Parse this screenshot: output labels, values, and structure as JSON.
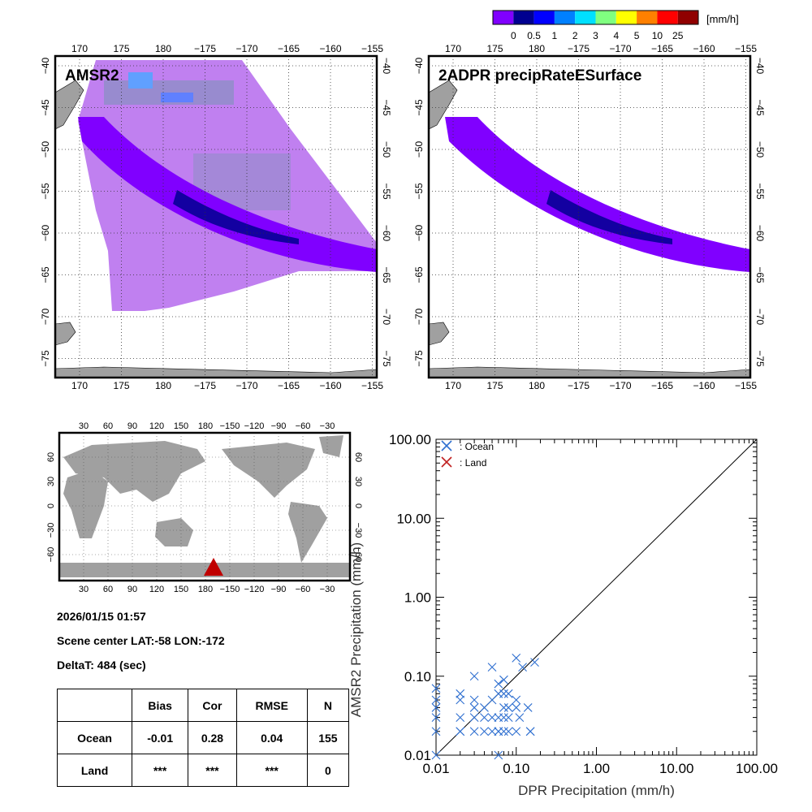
{
  "colorbar": {
    "unit": "[mm/h]",
    "labels": [
      "0",
      "0.5",
      "1",
      "2",
      "3",
      "4",
      "5",
      "10",
      "25"
    ],
    "colors": [
      "#8000ff",
      "#000090",
      "#0000ff",
      "#0080ff",
      "#00e0ff",
      "#80ff80",
      "#ffff00",
      "#ff8000",
      "#ff0000",
      "#900000"
    ]
  },
  "maps": {
    "lon_ticks": [
      "170",
      "175",
      "180",
      "−175",
      "−170",
      "−165",
      "−160",
      "−155"
    ],
    "lat_ticks": [
      "−40",
      "−45",
      "−50",
      "−55",
      "−60",
      "−65",
      "−70",
      "−75"
    ],
    "left_title": "AMSR2",
    "right_title": "2ADPR precipRateESurface",
    "swath_colors": {
      "amsr2_coverage": "#c080f0",
      "light": "#8000ff",
      "moderate": "#000090",
      "gray_patch": "#8890c0"
    }
  },
  "world_map": {
    "top_ticks": [
      "30",
      "60",
      "90",
      "120",
      "150",
      "180",
      "−150",
      "−120",
      "−90",
      "−60",
      "−30"
    ],
    "bottom_ticks": [
      "30",
      "60",
      "90",
      "120",
      "150",
      "180",
      "−150",
      "−120",
      "−90",
      "−60",
      "−30"
    ],
    "lat_ticks": [
      "60",
      "30",
      "0",
      "−30",
      "−60"
    ],
    "marker_color": "#c00000",
    "land_color": "#a0a0a0"
  },
  "info": {
    "datetime": "2026/01/15 01:57",
    "scene_center": "Scene center LAT:-58   LON:-172",
    "delta_t": "DeltaT:  484 (sec)"
  },
  "stats_table": {
    "headers": [
      "",
      "Bias",
      "Cor",
      "RMSE",
      "N"
    ],
    "rows": [
      {
        "label": "Ocean",
        "values": [
          "-0.01",
          "0.28",
          "0.04",
          "155"
        ]
      },
      {
        "label": "Land",
        "values": [
          "***",
          "***",
          "***",
          "0"
        ]
      }
    ]
  },
  "chart_data": {
    "type": "scatter",
    "xlabel": "DPR Precipitation (mm/h)",
    "ylabel": "AMSR2 Precipitation (mm/h)",
    "xscale": "log",
    "yscale": "log",
    "xlim": [
      0.01,
      100
    ],
    "ylim": [
      0.01,
      100
    ],
    "xticks": [
      "0.01",
      "0.10",
      "1.00",
      "10.00",
      "100.00"
    ],
    "yticks": [
      "0.01",
      "0.10",
      "1.00",
      "10.00",
      "100.00"
    ],
    "legend_position": "top-left",
    "one_to_one_line": true,
    "series": [
      {
        "name": ": Ocean",
        "marker": "x",
        "color": "#3070d0",
        "x": [
          0.01,
          0.01,
          0.01,
          0.01,
          0.01,
          0.01,
          0.02,
          0.02,
          0.02,
          0.02,
          0.02,
          0.03,
          0.03,
          0.03,
          0.03,
          0.03,
          0.04,
          0.04,
          0.04,
          0.05,
          0.05,
          0.05,
          0.05,
          0.06,
          0.06,
          0.06,
          0.06,
          0.06,
          0.07,
          0.07,
          0.07,
          0.07,
          0.07,
          0.08,
          0.08,
          0.08,
          0.08,
          0.1,
          0.1,
          0.1,
          0.1,
          0.11,
          0.12,
          0.14,
          0.15,
          0.15,
          0.17,
          0.06
        ],
        "y": [
          0.07,
          0.05,
          0.04,
          0.03,
          0.02,
          0.01,
          0.06,
          0.05,
          0.03,
          0.02,
          0.02,
          0.1,
          0.05,
          0.04,
          0.03,
          0.02,
          0.04,
          0.03,
          0.02,
          0.13,
          0.05,
          0.03,
          0.02,
          0.08,
          0.06,
          0.03,
          0.02,
          0.02,
          0.09,
          0.06,
          0.04,
          0.03,
          0.02,
          0.06,
          0.04,
          0.03,
          0.02,
          0.17,
          0.05,
          0.04,
          0.02,
          0.03,
          0.13,
          0.04,
          0.02,
          0.02,
          0.15,
          0.01
        ]
      },
      {
        "name": ": Land",
        "marker": "x",
        "color": "#c02020",
        "x": [],
        "y": []
      }
    ]
  }
}
